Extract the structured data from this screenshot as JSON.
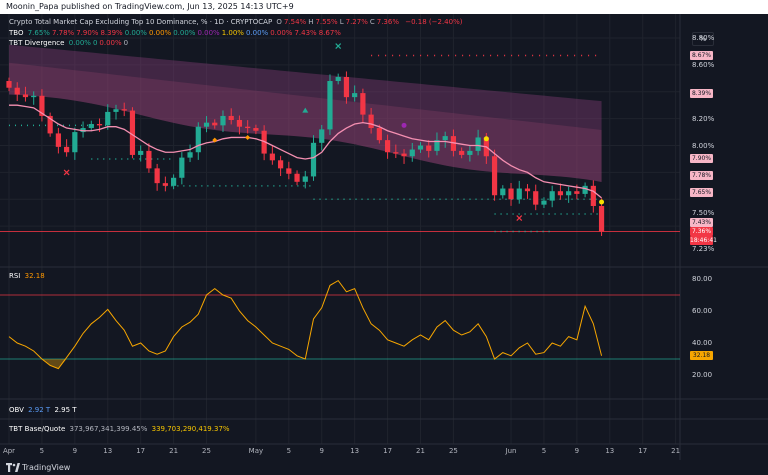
{
  "topbar": {
    "text": "Moonin_Papa published on TradingView.com, Jun 13, 2025 14:13 UTC+9"
  },
  "legend": {
    "title": "Crypto Total Market Cap Excluding Top 10 Dominance, % · 1D · CRYPTOCAP",
    "ohlc": [
      {
        "k": "O",
        "v": "7.54%"
      },
      {
        "k": "H",
        "v": "7.55%"
      },
      {
        "k": "L",
        "v": "7.27%"
      },
      {
        "k": "C",
        "v": "7.36%"
      }
    ],
    "change": "−0.18 (−2.40%)",
    "tbo_label": "TBO",
    "tbo_values": [
      "7.65%",
      "7.78%",
      "7.90%",
      "8.39%",
      "0.00%",
      "0.00%",
      "0.00%",
      "0.00%",
      "1.00%",
      "0.00%",
      "0.00%",
      "7.43%",
      "8.67%"
    ],
    "tbd_label": "TBT Divergence",
    "tbd_values": [
      "0.00%",
      "0",
      "0.00%",
      "0"
    ]
  },
  "pane_labels": {
    "rsi_name": "RSI",
    "rsi_value": "32.18",
    "obv_name": "OBV",
    "obv_v1": "2.92 T",
    "obv_v2": "2.95 T",
    "bq_name": "TBT Base/Quote",
    "bq_v1": "373,967,341,399.45%",
    "bq_v2": "339,703,290,419.37%"
  },
  "price_axis": {
    "scale_label": "%",
    "ticks": [
      "8.80%",
      "8.60%",
      "8.20%",
      "8.00%",
      "7.50%",
      "7.23%"
    ],
    "badges": [
      {
        "label": "8.67%",
        "value": 8.67,
        "color": "#f7b6c6"
      },
      {
        "label": "8.39%",
        "value": 8.39,
        "color": "#f7b6c6"
      },
      {
        "label": "7.90%",
        "value": 7.9,
        "color": "#f7b6c6"
      },
      {
        "label": "7.78%",
        "value": 7.78,
        "color": "#f7b6c6"
      },
      {
        "label": "7.65%",
        "value": 7.65,
        "color": "#f7b6c6"
      },
      {
        "label": "7.43%",
        "value": 7.43,
        "color": "#f7b6c6"
      },
      {
        "label": "7.36%",
        "value": 7.36,
        "color": "#f23645"
      }
    ],
    "countdown": "18:46:41"
  },
  "rsi_axis": {
    "ticks": [
      "80.00",
      "60.00",
      "40.00",
      "20.00"
    ],
    "current": "32.18"
  },
  "x_axis": {
    "labels": [
      {
        "text": "Apr",
        "d": 0
      },
      {
        "text": "5",
        "d": 4
      },
      {
        "text": "9",
        "d": 8
      },
      {
        "text": "13",
        "d": 12
      },
      {
        "text": "17",
        "d": 16
      },
      {
        "text": "21",
        "d": 20
      },
      {
        "text": "25",
        "d": 24
      },
      {
        "text": "May",
        "d": 30
      },
      {
        "text": "5",
        "d": 34
      },
      {
        "text": "9",
        "d": 38
      },
      {
        "text": "13",
        "d": 42
      },
      {
        "text": "17",
        "d": 46
      },
      {
        "text": "21",
        "d": 50
      },
      {
        "text": "25",
        "d": 54
      },
      {
        "text": "Jun",
        "d": 61
      },
      {
        "text": "5",
        "d": 65
      },
      {
        "text": "9",
        "d": 69
      },
      {
        "text": "13",
        "d": 73
      },
      {
        "text": "17",
        "d": 77
      },
      {
        "text": "21",
        "d": 81
      }
    ]
  },
  "brand": {
    "name": "TradingView"
  },
  "chart_data": {
    "type": "candlestick",
    "title": "Crypto Total Market Cap Excluding Top 10 Dominance, % · 1D · CRYPTOCAP",
    "ylim": [
      7.2,
      8.9
    ],
    "start": "Apr 1, 2025",
    "colors": {
      "up": "#22ab94",
      "down": "#f23645",
      "ma": "#f48fb1",
      "rsi": "#f7a600"
    },
    "closes": [
      8.43,
      8.38,
      8.36,
      8.37,
      8.22,
      8.09,
      7.99,
      7.95,
      8.1,
      8.13,
      8.16,
      8.15,
      8.25,
      8.27,
      8.26,
      7.93,
      7.96,
      7.83,
      7.72,
      7.7,
      7.76,
      7.91,
      7.95,
      8.14,
      8.17,
      8.15,
      8.22,
      8.19,
      8.14,
      8.13,
      8.11,
      7.94,
      7.89,
      7.83,
      7.79,
      7.73,
      7.77,
      8.02,
      8.12,
      8.48,
      8.51,
      8.36,
      8.39,
      8.23,
      8.13,
      8.04,
      7.95,
      7.94,
      7.92,
      7.97,
      8.0,
      7.96,
      8.04,
      8.07,
      7.96,
      7.93,
      7.96,
      8.06,
      7.92,
      7.63,
      7.68,
      7.6,
      7.68,
      7.66,
      7.56,
      7.59,
      7.66,
      7.63,
      7.66,
      7.64,
      7.7,
      7.55,
      7.36
    ],
    "ma": [
      8.3,
      8.3,
      8.29,
      8.28,
      8.24,
      8.2,
      8.16,
      8.13,
      8.12,
      8.11,
      8.11,
      8.12,
      8.14,
      8.14,
      8.12,
      8.08,
      8.04,
      8.0,
      7.97,
      7.95,
      7.95,
      7.96,
      7.97,
      8.0,
      8.02,
      8.03,
      8.05,
      8.06,
      8.06,
      8.06,
      8.05,
      8.03,
      8.0,
      7.97,
      7.94,
      7.91,
      7.9,
      7.91,
      7.95,
      8.03,
      8.09,
      8.13,
      8.16,
      8.17,
      8.16,
      8.14,
      8.11,
      8.09,
      8.07,
      8.05,
      8.04,
      8.03,
      8.03,
      8.03,
      8.02,
      8.01,
      8.0,
      8.0,
      7.99,
      7.94,
      7.89,
      7.85,
      7.82,
      7.8,
      7.76,
      7.73,
      7.72,
      7.71,
      7.7,
      7.69,
      7.68,
      7.66,
      7.61
    ],
    "levels": [
      8.67,
      8.39,
      7.9,
      7.78,
      7.65,
      7.43,
      7.36
    ],
    "rsi": {
      "ylim": [
        10,
        90
      ],
      "bands": [
        70,
        30
      ],
      "values": [
        44,
        40,
        38,
        35,
        30,
        26,
        24,
        31,
        38,
        46,
        52,
        56,
        61,
        54,
        48,
        38,
        40,
        35,
        33,
        35,
        44,
        50,
        53,
        58,
        70,
        74,
        70,
        68,
        60,
        54,
        50,
        45,
        40,
        38,
        36,
        32,
        30,
        55,
        62,
        76,
        79,
        72,
        74,
        62,
        52,
        48,
        42,
        40,
        38,
        42,
        45,
        42,
        50,
        54,
        48,
        45,
        47,
        52,
        44,
        30,
        34,
        32,
        37,
        40,
        33,
        34,
        40,
        38,
        44,
        42,
        63,
        52,
        32
      ]
    }
  }
}
